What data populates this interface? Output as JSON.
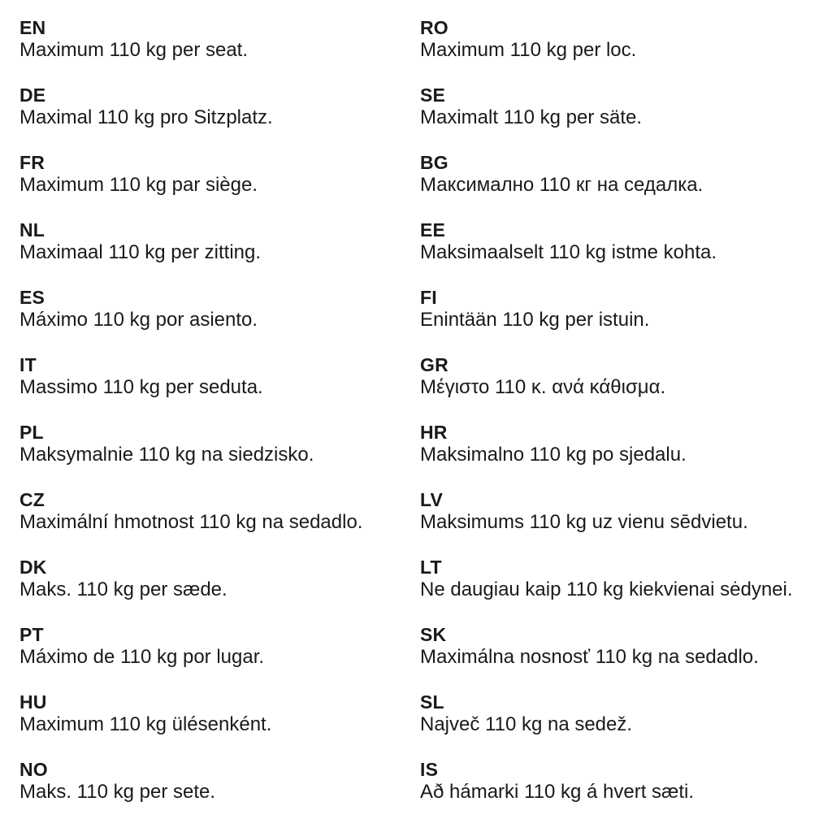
{
  "document": {
    "kind": "multilingual-weight-warning",
    "text_color": "#1a1a1a",
    "background_color": "#ffffff",
    "columns": [
      {
        "entries": [
          {
            "code": "EN",
            "text": "Maximum 110 kg per seat."
          },
          {
            "code": "DE",
            "text": "Maximal 110 kg pro Sitzplatz."
          },
          {
            "code": "FR",
            "text": "Maximum 110 kg par siège."
          },
          {
            "code": "NL",
            "text": "Maximaal 110 kg per zitting."
          },
          {
            "code": "ES",
            "text": "Máximo 110 kg por asiento."
          },
          {
            "code": "IT",
            "text": "Massimo 110 kg per seduta."
          },
          {
            "code": "PL",
            "text": "Maksymalnie 110 kg na siedzisko."
          },
          {
            "code": "CZ",
            "text": "Maximální hmotnost 110 kg na sedadlo."
          },
          {
            "code": "DK",
            "text": "Maks. 110 kg per sæde."
          },
          {
            "code": "PT",
            "text": "Máximo de 110 kg por lugar."
          },
          {
            "code": "HU",
            "text": "Maximum 110 kg ülésenként."
          },
          {
            "code": "NO",
            "text": "Maks. 110 kg per sete."
          }
        ]
      },
      {
        "entries": [
          {
            "code": "RO",
            "text": "Maximum 110 kg per loc."
          },
          {
            "code": "SE",
            "text": "Maximalt 110 kg per säte."
          },
          {
            "code": "BG",
            "text": "Максимално 110 кг на седалка."
          },
          {
            "code": "EE",
            "text": "Maksimaalselt 110 kg istme kohta."
          },
          {
            "code": "FI",
            "text": "Enintään 110 kg per istuin."
          },
          {
            "code": "GR",
            "text": "Μέγιστο 110 κ. ανά κάθισμα."
          },
          {
            "code": "HR",
            "text": "Maksimalno 110 kg po sjedalu."
          },
          {
            "code": "LV",
            "text": "Maksimums 110 kg uz vienu sēdvietu."
          },
          {
            "code": "LT",
            "text": "Ne daugiau kaip 110 kg kiekvienai sėdynei."
          },
          {
            "code": "SK",
            "text": "Maximálna nosnosť 110 kg na sedadlo."
          },
          {
            "code": "SL",
            "text": "Največ 110 kg na sedež."
          },
          {
            "code": "IS",
            "text": "Að hámarki 110 kg á hvert sæti."
          }
        ]
      }
    ]
  }
}
